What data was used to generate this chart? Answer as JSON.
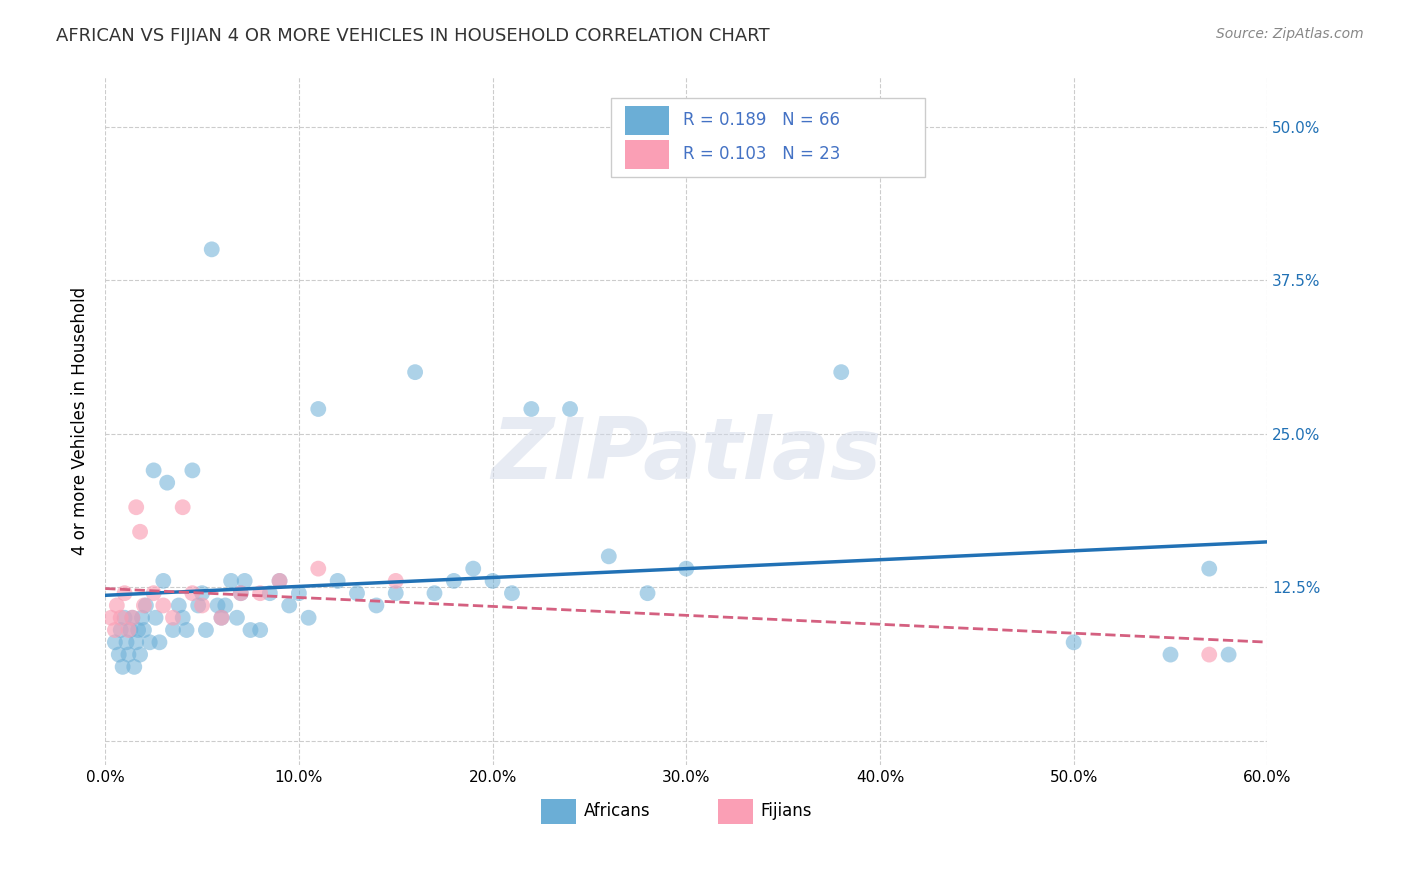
{
  "title": "AFRICAN VS FIJIAN 4 OR MORE VEHICLES IN HOUSEHOLD CORRELATION CHART",
  "source": "Source: ZipAtlas.com",
  "ylabel": "4 or more Vehicles in Household",
  "xlim": [
    0.0,
    0.6
  ],
  "ylim": [
    -0.02,
    0.54
  ],
  "xticks": [
    0.0,
    0.1,
    0.2,
    0.3,
    0.4,
    0.5,
    0.6
  ],
  "xticklabels": [
    "0.0%",
    "10.0%",
    "20.0%",
    "30.0%",
    "40.0%",
    "50.0%",
    "60.0%"
  ],
  "yticks": [
    0.0,
    0.125,
    0.25,
    0.375,
    0.5
  ],
  "yticklabels": [
    "",
    "12.5%",
    "25.0%",
    "37.5%",
    "50.0%"
  ],
  "african_R": 0.189,
  "african_N": 66,
  "fijian_R": 0.103,
  "fijian_N": 23,
  "blue_color": "#6baed6",
  "pink_color": "#fa9fb5",
  "blue_line_color": "#2171b5",
  "pink_line_color": "#d46080",
  "watermark": "ZIPatlas",
  "background_color": "#ffffff",
  "grid_color": "#cccccc",
  "legend_text_color": "#4472c4",
  "title_color": "#333333",
  "african_x": [
    0.005,
    0.007,
    0.008,
    0.009,
    0.01,
    0.011,
    0.012,
    0.013,
    0.014,
    0.015,
    0.016,
    0.017,
    0.018,
    0.019,
    0.02,
    0.021,
    0.023,
    0.025,
    0.026,
    0.028,
    0.03,
    0.032,
    0.035,
    0.038,
    0.04,
    0.042,
    0.045,
    0.048,
    0.05,
    0.052,
    0.055,
    0.058,
    0.06,
    0.062,
    0.065,
    0.068,
    0.07,
    0.072,
    0.075,
    0.08,
    0.085,
    0.09,
    0.095,
    0.1,
    0.105,
    0.11,
    0.12,
    0.13,
    0.14,
    0.15,
    0.16,
    0.17,
    0.18,
    0.19,
    0.2,
    0.21,
    0.22,
    0.24,
    0.26,
    0.28,
    0.3,
    0.38,
    0.5,
    0.55,
    0.57,
    0.58
  ],
  "african_y": [
    0.08,
    0.07,
    0.09,
    0.06,
    0.1,
    0.08,
    0.07,
    0.09,
    0.1,
    0.06,
    0.08,
    0.09,
    0.07,
    0.1,
    0.09,
    0.11,
    0.08,
    0.22,
    0.1,
    0.08,
    0.13,
    0.21,
    0.09,
    0.11,
    0.1,
    0.09,
    0.22,
    0.11,
    0.12,
    0.09,
    0.4,
    0.11,
    0.1,
    0.11,
    0.13,
    0.1,
    0.12,
    0.13,
    0.09,
    0.09,
    0.12,
    0.13,
    0.11,
    0.12,
    0.1,
    0.27,
    0.13,
    0.12,
    0.11,
    0.12,
    0.3,
    0.12,
    0.13,
    0.14,
    0.13,
    0.12,
    0.27,
    0.27,
    0.15,
    0.12,
    0.14,
    0.3,
    0.08,
    0.07,
    0.14,
    0.07
  ],
  "fijian_x": [
    0.003,
    0.005,
    0.006,
    0.008,
    0.01,
    0.012,
    0.014,
    0.016,
    0.018,
    0.02,
    0.025,
    0.03,
    0.035,
    0.04,
    0.045,
    0.05,
    0.06,
    0.07,
    0.08,
    0.09,
    0.11,
    0.15,
    0.57
  ],
  "fijian_y": [
    0.1,
    0.09,
    0.11,
    0.1,
    0.12,
    0.09,
    0.1,
    0.19,
    0.17,
    0.11,
    0.12,
    0.11,
    0.1,
    0.19,
    0.12,
    0.11,
    0.1,
    0.12,
    0.12,
    0.13,
    0.14,
    0.13,
    0.07
  ]
}
